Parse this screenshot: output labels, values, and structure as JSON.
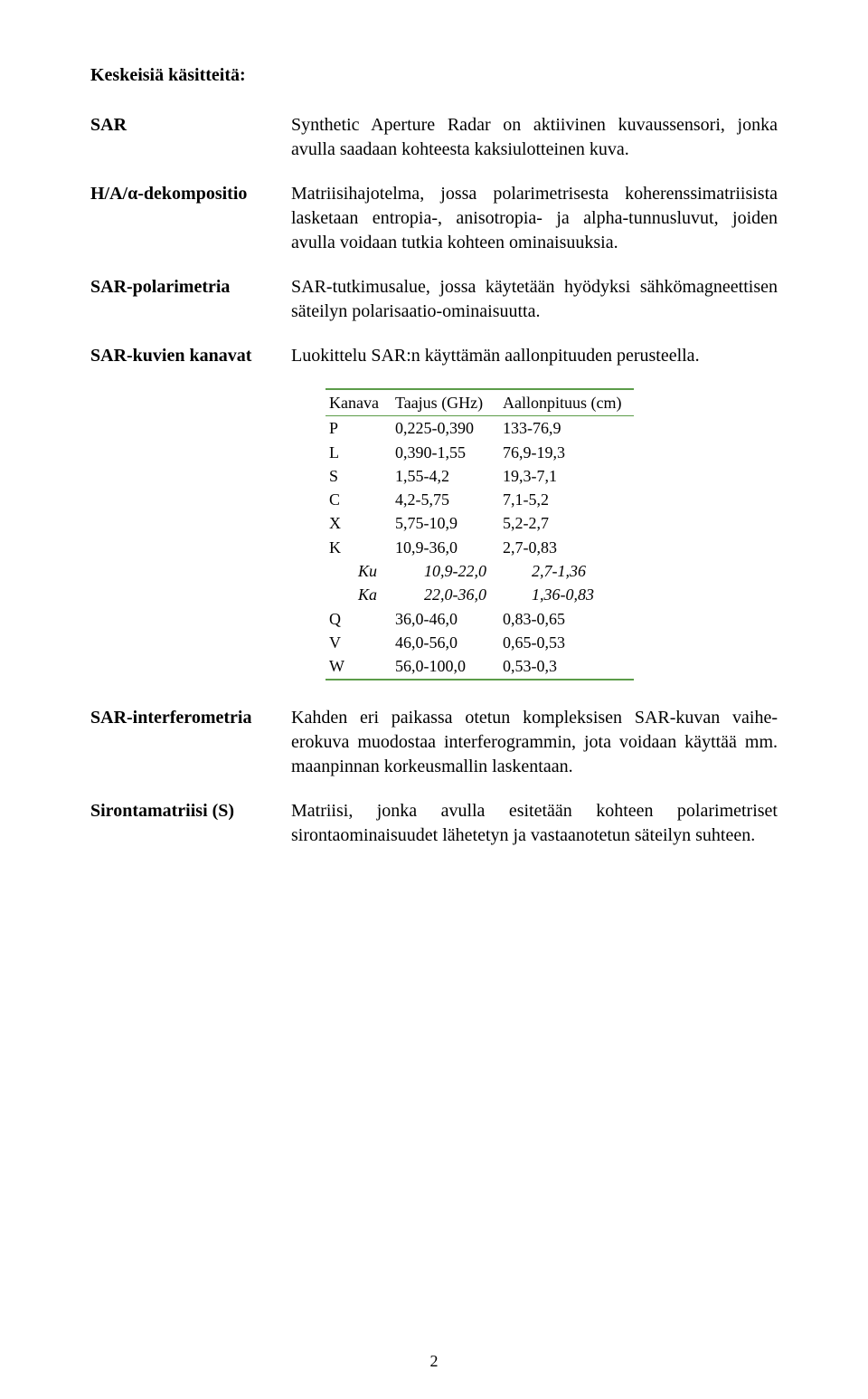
{
  "colors": {
    "text": "#000000",
    "background": "#ffffff",
    "table_border": "#5b9c49"
  },
  "typography": {
    "body_family": "Times New Roman",
    "body_size_pt": 15,
    "heading_weight": "bold"
  },
  "heading": "Keskeisiä käsitteitä:",
  "defs": [
    {
      "term": "SAR",
      "text": "Synthetic Aperture Radar on aktiivinen kuvaussensori, jonka avulla saadaan kohteesta kaksiulotteinen kuva."
    },
    {
      "term": "H/A/α-dekompositio",
      "text": "Matriisihajotelma, jossa polarimetrisesta koherenssimatriisista lasketaan entropia-, anisotropia- ja alpha-tunnusluvut, joiden avulla voidaan tutkia kohteen ominaisuuksia."
    },
    {
      "term": "SAR-polarimetria",
      "text": "SAR-tutkimusalue, jossa käytetään hyödyksi sähkömagneettisen säteilyn polarisaatio-ominaisuutta."
    },
    {
      "term": "SAR-kuvien kanavat",
      "text": "Luokittelu SAR:n käyttämän aallonpituuden perusteella."
    }
  ],
  "channel_table": {
    "type": "table",
    "border_color": "#5b9c49",
    "header_fontweight": "normal",
    "row_fontsize": 18,
    "columns": [
      "Kanava",
      "Taajus (GHz)",
      "Aallonpituus (cm)"
    ],
    "rows": [
      {
        "k": "P",
        "f": "0,225-0,390",
        "w": "133-76,9",
        "indent": false,
        "italic": false
      },
      {
        "k": "L",
        "f": "0,390-1,55",
        "w": "76,9-19,3",
        "indent": false,
        "italic": false
      },
      {
        "k": "S",
        "f": "1,55-4,2",
        "w": "19,3-7,1",
        "indent": false,
        "italic": false
      },
      {
        "k": "C",
        "f": "4,2-5,75",
        "w": "7,1-5,2",
        "indent": false,
        "italic": false
      },
      {
        "k": "X",
        "f": "5,75-10,9",
        "w": "5,2-2,7",
        "indent": false,
        "italic": false
      },
      {
        "k": "K",
        "f": "10,9-36,0",
        "w": "2,7-0,83",
        "indent": false,
        "italic": false
      },
      {
        "k": "Ku",
        "f": "10,9-22,0",
        "w": "2,7-1,36",
        "indent": true,
        "italic": true
      },
      {
        "k": "Ka",
        "f": "22,0-36,0",
        "w": "1,36-0,83",
        "indent": true,
        "italic": true
      },
      {
        "k": "Q",
        "f": "36,0-46,0",
        "w": "0,83-0,65",
        "indent": false,
        "italic": false
      },
      {
        "k": "V",
        "f": "46,0-56,0",
        "w": "0,65-0,53",
        "indent": false,
        "italic": false
      },
      {
        "k": "W",
        "f": "56,0-100,0",
        "w": "0,53-0,3",
        "indent": false,
        "italic": false
      }
    ]
  },
  "defs_after": [
    {
      "term": "SAR-interferometria",
      "text": "Kahden eri paikassa otetun kompleksisen SAR-kuvan vaihe-erokuva muodostaa interferogrammin, jota voidaan käyttää mm. maanpinnan korkeusmallin laskentaan."
    },
    {
      "term": "Sirontamatriisi (S)",
      "text": "Matriisi, jonka avulla esitetään kohteen polarimetriset sirontaominaisuudet lähetetyn ja vastaanotetun säteilyn suhteen."
    }
  ],
  "page_number": "2"
}
